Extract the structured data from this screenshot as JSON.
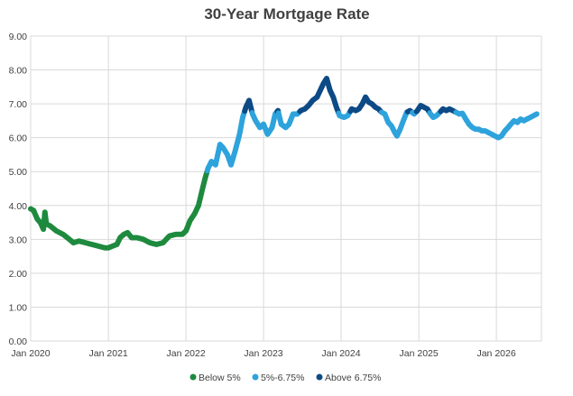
{
  "chart_data": {
    "type": "scatter",
    "title": "30-Year Mortgage Rate",
    "xlabel": "",
    "ylabel": "",
    "ylim": [
      0,
      9
    ],
    "xlim": [
      "2020-01-01",
      "2026-08-01"
    ],
    "y_ticks": [
      "0.00",
      "1.00",
      "2.00",
      "3.00",
      "4.00",
      "5.00",
      "6.00",
      "7.00",
      "8.00",
      "9.00"
    ],
    "x_ticks": [
      {
        "date": "2020-01-01",
        "label": "Jan 2020"
      },
      {
        "date": "2021-01-01",
        "label": "Jan 2021"
      },
      {
        "date": "2022-01-01",
        "label": "Jan 2022"
      },
      {
        "date": "2023-01-01",
        "label": "Jan 2023"
      },
      {
        "date": "2024-01-01",
        "label": "Jan 2024"
      },
      {
        "date": "2025-01-01",
        "label": "Jan 2025"
      },
      {
        "date": "2026-01-01",
        "label": "Jan 2026"
      }
    ],
    "grid": true,
    "legend_position": "bottom",
    "series": [
      {
        "name": "Below 5%",
        "color": "#1e8a3e"
      },
      {
        "name": "5%-6.75%",
        "color": "#2ea3dc"
      },
      {
        "name": "Above 6.75%",
        "color": "#0d4a86"
      }
    ],
    "thresholds": [
      5,
      6.75
    ],
    "points": [
      [
        "2020-01-01",
        3.9
      ],
      [
        "2020-01-15",
        3.85
      ],
      [
        "2020-02-01",
        3.6
      ],
      [
        "2020-02-15",
        3.5
      ],
      [
        "2020-03-01",
        3.3
      ],
      [
        "2020-03-08",
        3.8
      ],
      [
        "2020-03-15",
        3.45
      ],
      [
        "2020-04-01",
        3.4
      ],
      [
        "2020-05-01",
        3.25
      ],
      [
        "2020-06-01",
        3.15
      ],
      [
        "2020-07-01",
        3.0
      ],
      [
        "2020-07-20",
        2.9
      ],
      [
        "2020-08-15",
        2.95
      ],
      [
        "2020-09-15",
        2.9
      ],
      [
        "2020-10-15",
        2.85
      ],
      [
        "2020-11-15",
        2.8
      ],
      [
        "2020-12-15",
        2.75
      ],
      [
        "2021-01-01",
        2.75
      ],
      [
        "2021-01-20",
        2.8
      ],
      [
        "2021-02-10",
        2.85
      ],
      [
        "2021-02-25",
        3.05
      ],
      [
        "2021-03-15",
        3.15
      ],
      [
        "2021-04-01",
        3.2
      ],
      [
        "2021-04-20",
        3.05
      ],
      [
        "2021-05-15",
        3.05
      ],
      [
        "2021-06-15",
        3.0
      ],
      [
        "2021-07-15",
        2.9
      ],
      [
        "2021-08-15",
        2.85
      ],
      [
        "2021-09-15",
        2.9
      ],
      [
        "2021-10-15",
        3.1
      ],
      [
        "2021-11-15",
        3.15
      ],
      [
        "2021-12-15",
        3.15
      ],
      [
        "2022-01-01",
        3.25
      ],
      [
        "2022-01-20",
        3.55
      ],
      [
        "2022-02-10",
        3.75
      ],
      [
        "2022-03-01",
        4.0
      ],
      [
        "2022-03-20",
        4.5
      ],
      [
        "2022-04-01",
        4.8
      ],
      [
        "2022-04-15",
        5.1
      ],
      [
        "2022-05-01",
        5.3
      ],
      [
        "2022-05-20",
        5.2
      ],
      [
        "2022-06-10",
        5.8
      ],
      [
        "2022-06-25",
        5.7
      ],
      [
        "2022-07-15",
        5.5
      ],
      [
        "2022-08-01",
        5.2
      ],
      [
        "2022-08-20",
        5.6
      ],
      [
        "2022-09-10",
        6.1
      ],
      [
        "2022-09-25",
        6.6
      ],
      [
        "2022-10-10",
        6.9
      ],
      [
        "2022-10-25",
        7.1
      ],
      [
        "2022-11-10",
        6.7
      ],
      [
        "2022-11-25",
        6.5
      ],
      [
        "2022-12-15",
        6.3
      ],
      [
        "2023-01-01",
        6.4
      ],
      [
        "2023-01-20",
        6.1
      ],
      [
        "2023-02-10",
        6.3
      ],
      [
        "2023-02-25",
        6.7
      ],
      [
        "2023-03-10",
        6.8
      ],
      [
        "2023-03-25",
        6.4
      ],
      [
        "2023-04-15",
        6.3
      ],
      [
        "2023-05-01",
        6.4
      ],
      [
        "2023-05-20",
        6.7
      ],
      [
        "2023-06-10",
        6.7
      ],
      [
        "2023-06-25",
        6.8
      ],
      [
        "2023-07-15",
        6.85
      ],
      [
        "2023-08-01",
        6.95
      ],
      [
        "2023-08-20",
        7.1
      ],
      [
        "2023-09-10",
        7.2
      ],
      [
        "2023-09-25",
        7.4
      ],
      [
        "2023-10-10",
        7.6
      ],
      [
        "2023-10-25",
        7.75
      ],
      [
        "2023-11-10",
        7.4
      ],
      [
        "2023-11-25",
        7.2
      ],
      [
        "2023-12-10",
        6.9
      ],
      [
        "2023-12-25",
        6.65
      ],
      [
        "2024-01-15",
        6.6
      ],
      [
        "2024-02-01",
        6.65
      ],
      [
        "2024-02-20",
        6.85
      ],
      [
        "2024-03-10",
        6.8
      ],
      [
        "2024-03-25",
        6.85
      ],
      [
        "2024-04-10",
        7.0
      ],
      [
        "2024-04-25",
        7.2
      ],
      [
        "2024-05-10",
        7.05
      ],
      [
        "2024-05-25",
        7.0
      ],
      [
        "2024-06-10",
        6.9
      ],
      [
        "2024-06-25",
        6.85
      ],
      [
        "2024-07-10",
        6.75
      ],
      [
        "2024-07-25",
        6.7
      ],
      [
        "2024-08-10",
        6.45
      ],
      [
        "2024-08-25",
        6.35
      ],
      [
        "2024-09-10",
        6.15
      ],
      [
        "2024-09-20",
        6.05
      ],
      [
        "2024-10-05",
        6.25
      ],
      [
        "2024-10-20",
        6.5
      ],
      [
        "2024-11-05",
        6.75
      ],
      [
        "2024-11-20",
        6.8
      ],
      [
        "2024-12-10",
        6.7
      ],
      [
        "2024-12-25",
        6.8
      ],
      [
        "2025-01-10",
        6.95
      ],
      [
        "2025-01-25",
        6.9
      ],
      [
        "2025-02-10",
        6.85
      ],
      [
        "2025-02-25",
        6.7
      ],
      [
        "2025-03-10",
        6.6
      ],
      [
        "2025-03-25",
        6.65
      ],
      [
        "2025-04-10",
        6.75
      ],
      [
        "2025-04-25",
        6.85
      ],
      [
        "2025-05-10",
        6.8
      ],
      [
        "2025-05-25",
        6.85
      ],
      [
        "2025-06-10",
        6.8
      ],
      [
        "2025-06-25",
        6.75
      ],
      [
        "2025-07-10",
        6.7
      ],
      [
        "2025-07-25",
        6.72
      ],
      [
        "2025-08-10",
        6.55
      ],
      [
        "2025-08-25",
        6.4
      ],
      [
        "2025-09-10",
        6.3
      ],
      [
        "2025-09-25",
        6.25
      ],
      [
        "2025-10-10",
        6.25
      ],
      [
        "2025-10-25",
        6.2
      ],
      [
        "2025-11-10",
        6.2
      ],
      [
        "2025-11-25",
        6.15
      ],
      [
        "2025-12-10",
        6.1
      ],
      [
        "2025-12-25",
        6.05
      ],
      [
        "2026-01-10",
        6.0
      ],
      [
        "2026-01-25",
        6.05
      ],
      [
        "2026-02-10",
        6.2
      ],
      [
        "2026-02-25",
        6.3
      ],
      [
        "2026-03-10",
        6.4
      ],
      [
        "2026-03-25",
        6.5
      ],
      [
        "2026-04-10",
        6.45
      ],
      [
        "2026-04-25",
        6.55
      ],
      [
        "2026-05-10",
        6.5
      ],
      [
        "2026-05-25",
        6.55
      ],
      [
        "2026-06-10",
        6.6
      ],
      [
        "2026-06-25",
        6.65
      ],
      [
        "2026-07-10",
        6.7
      ]
    ]
  }
}
